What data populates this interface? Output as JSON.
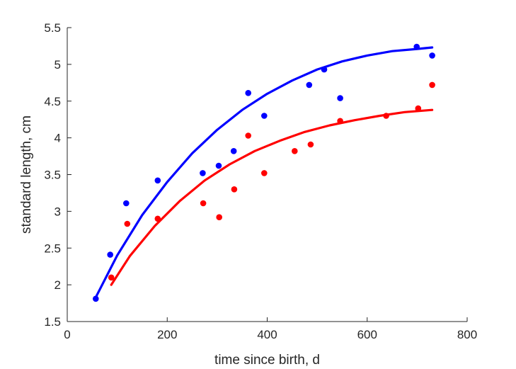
{
  "chart_data": {
    "type": "scatter",
    "title": "",
    "xlabel": "time since birth, d",
    "ylabel": "standard length, cm",
    "xlim": [
      0,
      800
    ],
    "ylim": [
      1.5,
      5.5
    ],
    "xticks": [
      0,
      200,
      400,
      600,
      800
    ],
    "xtick_labels": [
      "0",
      "200",
      "400",
      "600",
      "800"
    ],
    "yticks": [
      1.5,
      2,
      2.5,
      3,
      3.5,
      4,
      4.5,
      5,
      5.5
    ],
    "ytick_labels": [
      "1.5",
      "2",
      "2.5",
      "3",
      "3.5",
      "4",
      "4.5",
      "5",
      "5.5"
    ],
    "grid": false,
    "legend": "none",
    "series": [
      {
        "color": "#0000ff",
        "points": [
          [
            57,
            1.81
          ],
          [
            86,
            2.41
          ],
          [
            118,
            3.11
          ],
          [
            181,
            3.42
          ],
          [
            271,
            3.52
          ],
          [
            303,
            3.62
          ],
          [
            333,
            3.82
          ],
          [
            362,
            4.61
          ],
          [
            394,
            4.3
          ],
          [
            484,
            4.72
          ],
          [
            514,
            4.93
          ],
          [
            546,
            4.54
          ],
          [
            699,
            5.24
          ],
          [
            730,
            5.12
          ]
        ],
        "fit": [
          [
            57,
            1.83
          ],
          [
            100,
            2.4
          ],
          [
            150,
            2.95
          ],
          [
            200,
            3.4
          ],
          [
            250,
            3.79
          ],
          [
            300,
            4.11
          ],
          [
            350,
            4.38
          ],
          [
            400,
            4.6
          ],
          [
            450,
            4.78
          ],
          [
            500,
            4.93
          ],
          [
            550,
            5.04
          ],
          [
            600,
            5.12
          ],
          [
            650,
            5.18
          ],
          [
            700,
            5.21
          ],
          [
            730,
            5.23
          ]
        ]
      },
      {
        "color": "#ff0000",
        "points": [
          [
            88,
            2.1
          ],
          [
            120,
            2.83
          ],
          [
            181,
            2.9
          ],
          [
            272,
            3.11
          ],
          [
            304,
            2.92
          ],
          [
            334,
            3.3
          ],
          [
            362,
            4.03
          ],
          [
            394,
            3.52
          ],
          [
            455,
            3.82
          ],
          [
            487,
            3.91
          ],
          [
            546,
            4.23
          ],
          [
            638,
            4.3
          ],
          [
            702,
            4.4
          ],
          [
            730,
            4.72
          ]
        ],
        "fit": [
          [
            88,
            2.0
          ],
          [
            125,
            2.39
          ],
          [
            175,
            2.8
          ],
          [
            225,
            3.14
          ],
          [
            275,
            3.42
          ],
          [
            325,
            3.64
          ],
          [
            375,
            3.82
          ],
          [
            425,
            3.96
          ],
          [
            475,
            4.08
          ],
          [
            525,
            4.17
          ],
          [
            575,
            4.24
          ],
          [
            625,
            4.3
          ],
          [
            675,
            4.35
          ],
          [
            730,
            4.38
          ]
        ]
      }
    ]
  }
}
